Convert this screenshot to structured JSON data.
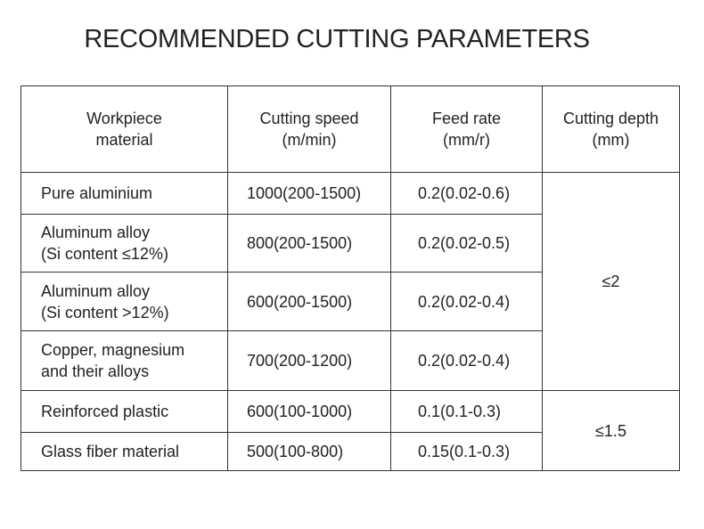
{
  "title": "RECOMMENDED CUTTING PARAMETERS",
  "table": {
    "header": [
      "Workpiece\nmaterial",
      "Cutting speed\n(m/min)",
      "Feed rate\n(mm/r)",
      "Cutting depth\n(mm)"
    ],
    "rows": [
      [
        "Pure aluminium",
        "1000(200-1500)",
        "0.2(0.02-0.6)",
        "≤2"
      ],
      [
        "Aluminum alloy\n(Si content ≤12%)",
        "800(200-1500)",
        "0.2(0.02-0.5)"
      ],
      [
        "Aluminum alloy\n(Si content >12%)",
        "600(200-1500)",
        "0.2(0.02-0.4)"
      ],
      [
        "Copper, magnesium\nand their alloys",
        "700(200-1200)",
        "0.2(0.02-0.4)"
      ],
      [
        "Reinforced plastic",
        "600(100-1000)",
        "0.1(0.1-0.3)",
        "≤1.5"
      ],
      [
        "Glass fiber material",
        "500(100-800)",
        "0.15(0.1-0.3)"
      ]
    ]
  }
}
